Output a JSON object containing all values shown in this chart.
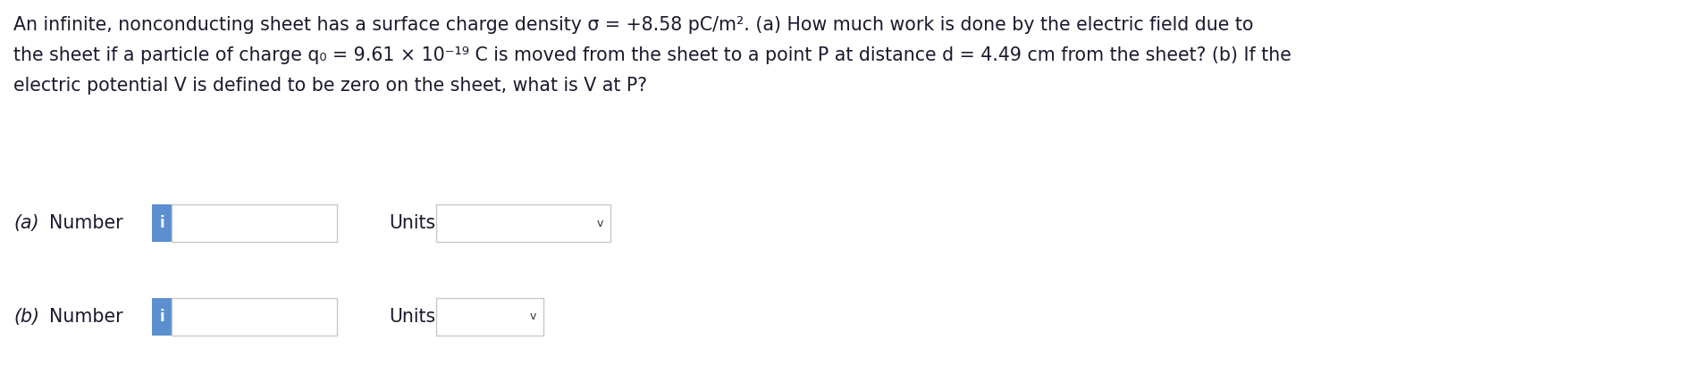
{
  "background_color": "#ffffff",
  "text_color": "#1a1a2e",
  "blue_color": "#5b8fcf",
  "box_border_color": "#c8c8c8",
  "row_a_label": "(a)",
  "row_b_label": "(b)",
  "number_label": "Number",
  "units_label": "Units",
  "info_char": "i",
  "chevron": "v",
  "font_size_paragraph": 14.8,
  "font_size_labels": 14.8,
  "line1": "An infinite, nonconducting sheet has a surface charge density σ = +8.58 pC/m². (a) How much work is done by the electric field due to",
  "line2": "the sheet if a particle of charge q₀ = 9.61 × 10⁻¹⁹ C is moved from the sheet to a point P at distance d = 4.49 cm from the sheet? (b) If the",
  "line3": "electric potential V is defined to be zero on the sheet, what is V at P?"
}
